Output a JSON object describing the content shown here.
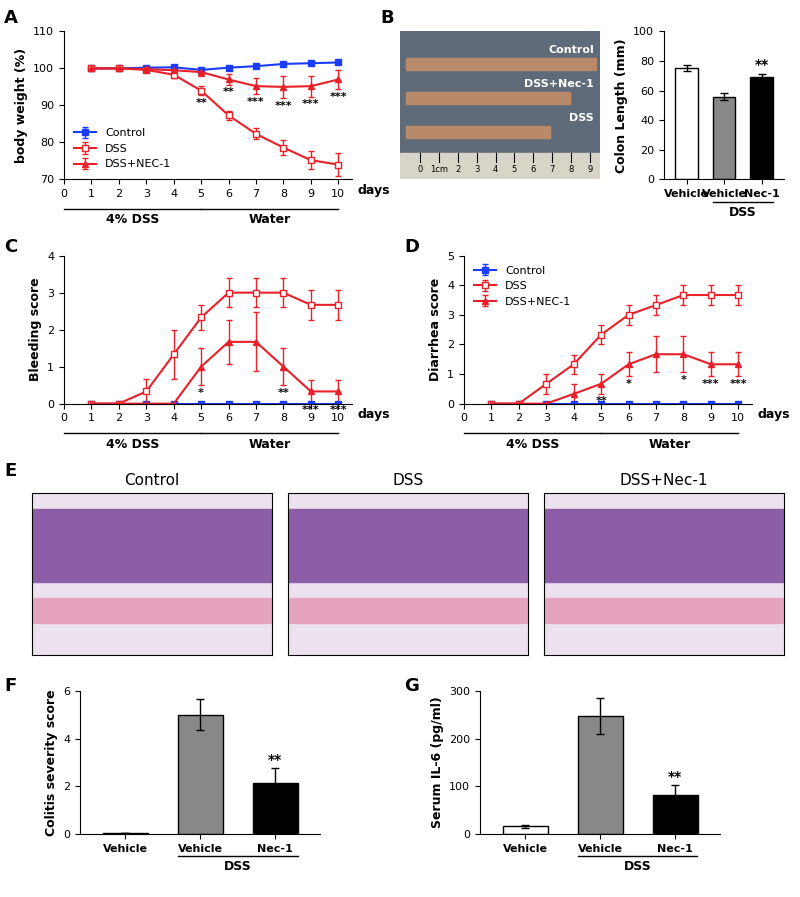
{
  "chart_data": [
    {
      "panel_label": "A",
      "type": "line",
      "y_label": "body weight (%)",
      "x_unit_label": "days",
      "xlim": [
        0,
        10.5
      ],
      "xticks": [
        0,
        1,
        2,
        3,
        4,
        5,
        6,
        7,
        8,
        9,
        10
      ],
      "ylim": [
        70,
        110
      ],
      "yticks": [
        70,
        80,
        90,
        100,
        110
      ],
      "legend": "lower left",
      "phases": [
        {
          "label": "4% DSS",
          "from": 0,
          "to": 5
        },
        {
          "label": "Water",
          "from": 5,
          "to": 10
        }
      ],
      "x": [
        1,
        2,
        3,
        4,
        5,
        6,
        7,
        8,
        9,
        10
      ],
      "series": [
        {
          "name": "Control",
          "color": "#1a3cff",
          "marker": "square",
          "values": [
            100,
            100,
            100.2,
            100.3,
            99.6,
            100.2,
            100.6,
            101.2,
            101.4,
            101.6
          ],
          "errors": [
            0.3,
            0.3,
            0.3,
            0.3,
            0.3,
            0.3,
            0.3,
            0.3,
            0.3,
            0.3
          ]
        },
        {
          "name": "DSS",
          "color": "#e8202a",
          "marker": "square_open",
          "values": [
            100,
            100,
            99.6,
            98.3,
            94,
            87.3,
            82.3,
            78.6,
            75.2,
            74
          ],
          "errors": [
            0.3,
            0.3,
            0.5,
            0.9,
            1.2,
            1.2,
            1.5,
            2,
            2.5,
            3.2
          ]
        },
        {
          "name": "DSS+NEC-1",
          "color": "#e8202a",
          "marker": "triangle",
          "values": [
            100,
            100,
            99.8,
            99.5,
            99,
            97,
            95.2,
            95,
            95.2,
            97
          ],
          "errors": [
            0.3,
            0.3,
            0.4,
            0.6,
            1,
            1.4,
            2.2,
            3,
            2.8,
            2.6
          ]
        }
      ],
      "annotations": [
        {
          "x": 5,
          "series": "DSS",
          "text": "**"
        },
        {
          "x": 6,
          "series": "DSS+NEC-1",
          "text": "**"
        },
        {
          "x": 7,
          "series": "DSS+NEC-1",
          "text": "***"
        },
        {
          "x": 8,
          "series": "DSS+NEC-1",
          "text": "***"
        },
        {
          "x": 9,
          "series": "DSS+NEC-1",
          "text": "***"
        },
        {
          "x": 10,
          "series": "DSS+NEC-1",
          "text": "***"
        }
      ]
    },
    {
      "panel_label": "B",
      "type": "image",
      "labels": [
        "Control",
        "DSS+Nec-1",
        "DSS"
      ],
      "scale_labels": [
        "0",
        "1cm",
        "2",
        "3",
        "4",
        "5",
        "6",
        "7",
        "8",
        "9"
      ]
    },
    {
      "type": "bar",
      "y_label": "Colon Length (mm)",
      "categories": [
        "Vehicle",
        "Vehicle",
        "Nec-1"
      ],
      "values": [
        75,
        56,
        69
      ],
      "errors": [
        2,
        2.5,
        2.5
      ],
      "colors": [
        "#ffffff",
        "#888888",
        "#000000"
      ],
      "group": {
        "label": "DSS",
        "members": [
          1,
          2
        ]
      },
      "ylim": [
        0,
        100
      ],
      "yticks": [
        0,
        20,
        40,
        60,
        80,
        100
      ],
      "annotations": [
        {
          "index": 2,
          "text": "**"
        }
      ]
    },
    {
      "panel_label": "C",
      "type": "line",
      "y_label": "Bleeding score",
      "x_unit_label": "days",
      "xlim": [
        0,
        10.5
      ],
      "xticks": [
        0,
        1,
        2,
        3,
        4,
        5,
        6,
        7,
        8,
        9,
        10
      ],
      "ylim": [
        0,
        4
      ],
      "yticks": [
        0,
        1,
        2,
        3,
        4
      ],
      "phases": [
        {
          "label": "4% DSS",
          "from": 0,
          "to": 5
        },
        {
          "label": "Water",
          "from": 5,
          "to": 10
        }
      ],
      "x": [
        1,
        2,
        3,
        4,
        5,
        6,
        7,
        8,
        9,
        10
      ],
      "series": [
        {
          "name": "Control",
          "color": "#1a3cff",
          "marker": "square",
          "values": [
            0,
            0,
            0,
            0,
            0,
            0,
            0,
            0,
            0,
            0
          ],
          "errors": [
            0,
            0,
            0,
            0,
            0,
            0,
            0,
            0,
            0,
            0
          ]
        },
        {
          "name": "DSS",
          "color": "#e8202a",
          "marker": "square_open",
          "values": [
            0,
            0,
            0.33,
            1.33,
            2.33,
            3,
            3,
            3,
            2.67,
            2.67
          ],
          "errors": [
            0,
            0,
            0.33,
            0.67,
            0.33,
            0.4,
            0.4,
            0.4,
            0.4,
            0.4
          ]
        },
        {
          "name": "DSS+NEC-1",
          "color": "#e8202a",
          "marker": "triangle",
          "values": [
            0,
            0,
            0,
            0,
            1,
            1.67,
            1.67,
            1,
            0.33,
            0.33
          ],
          "errors": [
            0,
            0,
            0,
            0,
            0.5,
            0.6,
            0.8,
            0.5,
            0.3,
            0.3
          ]
        }
      ],
      "annotations": [
        {
          "x": 5,
          "series": "DSS+NEC-1",
          "text": "*"
        },
        {
          "x": 8,
          "series": "DSS+NEC-1",
          "text": "**"
        },
        {
          "x": 9,
          "series": "DSS+NEC-1",
          "text": "***"
        },
        {
          "x": 10,
          "series": "DSS+NEC-1",
          "text": "***"
        }
      ]
    },
    {
      "panel_label": "D",
      "type": "line",
      "y_label": "Diarrhea score",
      "x_unit_label": "days",
      "xlim": [
        0,
        10.5
      ],
      "xticks": [
        0,
        1,
        2,
        3,
        4,
        5,
        6,
        7,
        8,
        9,
        10
      ],
      "ylim": [
        0,
        5
      ],
      "yticks": [
        0,
        1,
        2,
        3,
        4,
        5
      ],
      "legend": "upper left",
      "phases": [
        {
          "label": "4% DSS",
          "from": 0,
          "to": 5
        },
        {
          "label": "Water",
          "from": 5,
          "to": 10
        }
      ],
      "x": [
        1,
        2,
        3,
        4,
        5,
        6,
        7,
        8,
        9,
        10
      ],
      "series": [
        {
          "name": "Control",
          "color": "#1a3cff",
          "marker": "square",
          "values": [
            0,
            0,
            0,
            0,
            0,
            0,
            0,
            0,
            0,
            0
          ],
          "errors": [
            0,
            0,
            0,
            0,
            0,
            0,
            0,
            0,
            0,
            0
          ]
        },
        {
          "name": "DSS",
          "color": "#e8202a",
          "marker": "square_open",
          "values": [
            0,
            0,
            0.67,
            1.33,
            2.33,
            3,
            3.33,
            3.67,
            3.67,
            3.67
          ],
          "errors": [
            0,
            0,
            0.33,
            0.33,
            0.33,
            0.33,
            0.33,
            0.33,
            0.33,
            0.33
          ]
        },
        {
          "name": "DSS+NEC-1",
          "color": "#e8202a",
          "marker": "triangle",
          "values": [
            0,
            0,
            0,
            0.33,
            0.67,
            1.33,
            1.67,
            1.67,
            1.33,
            1.33
          ],
          "errors": [
            0,
            0,
            0,
            0.33,
            0.33,
            0.4,
            0.6,
            0.6,
            0.4,
            0.4
          ]
        }
      ],
      "annotations": [
        {
          "x": 5,
          "series": "DSS+NEC-1",
          "text": "**"
        },
        {
          "x": 6,
          "series": "DSS+NEC-1",
          "text": "*"
        },
        {
          "x": 8,
          "series": "DSS+NEC-1",
          "text": "*"
        },
        {
          "x": 9,
          "series": "DSS+NEC-1",
          "text": "***"
        },
        {
          "x": 10,
          "series": "DSS+NEC-1",
          "text": "***"
        }
      ]
    },
    {
      "panel_label": "E",
      "type": "image",
      "labels": [
        "Control",
        "DSS",
        "DSS+Nec-1"
      ]
    },
    {
      "panel_label": "F",
      "type": "bar",
      "y_label": "Colitis severity score",
      "categories": [
        "Vehicle",
        "Vehicle",
        "Nec-1"
      ],
      "values": [
        0.05,
        5,
        2.15
      ],
      "errors": [
        0.02,
        0.65,
        0.6
      ],
      "colors": [
        "#ffffff",
        "#888888",
        "#000000"
      ],
      "group": {
        "label": "DSS",
        "members": [
          1,
          2
        ]
      },
      "ylim": [
        0,
        6
      ],
      "yticks": [
        0,
        2,
        4,
        6
      ],
      "annotations": [
        {
          "index": 2,
          "text": "**"
        }
      ]
    },
    {
      "panel_label": "G",
      "type": "bar",
      "y_label": "Serum IL-6 (pg/ml)",
      "categories": [
        "Vehicle",
        "Vehicle",
        "Nec-1"
      ],
      "values": [
        17,
        247,
        83
      ],
      "errors": [
        3,
        38,
        20
      ],
      "colors": [
        "#ffffff",
        "#888888",
        "#000000"
      ],
      "group": {
        "label": "DSS",
        "members": [
          1,
          2
        ]
      },
      "ylim": [
        0,
        300
      ],
      "yticks": [
        0,
        100,
        200,
        300
      ],
      "annotations": [
        {
          "index": 2,
          "text": "**"
        }
      ]
    }
  ]
}
